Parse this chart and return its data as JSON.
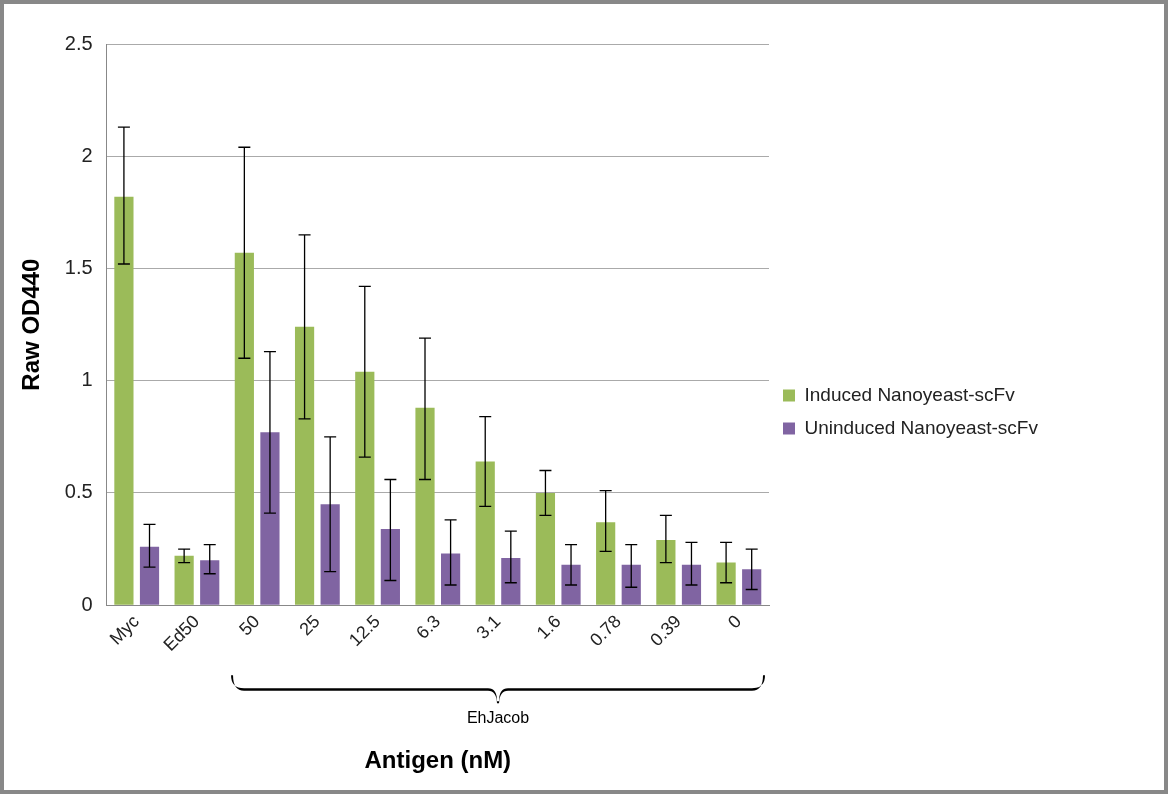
{
  "chart_data": {
    "type": "bar",
    "xlabel": "Antigen (nM)",
    "ylabel": "Raw OD440",
    "categories": [
      "Myc",
      "Ed50",
      "50",
      "25",
      "12.5",
      "6.3",
      "3.1",
      "1.6",
      "0.78",
      "0.39",
      "0"
    ],
    "series": [
      {
        "name": "Induced Nanoyeast-scFv",
        "color": "#9bbb59",
        "values": [
          1.82,
          0.22,
          1.57,
          1.24,
          1.04,
          0.88,
          0.64,
          0.5,
          0.37,
          0.29,
          0.19
        ],
        "errors": [
          [
            1.52,
            2.13
          ],
          [
            0.19,
            0.25
          ],
          [
            1.1,
            2.04
          ],
          [
            0.83,
            1.65
          ],
          [
            0.66,
            1.42
          ],
          [
            0.56,
            1.19
          ],
          [
            0.44,
            0.84
          ],
          [
            0.4,
            0.6
          ],
          [
            0.24,
            0.51
          ],
          [
            0.19,
            0.4
          ],
          [
            0.1,
            0.28
          ]
        ]
      },
      {
        "name": "Uninduced Nanoyeast-scFv",
        "color": "#8064a2",
        "values": [
          0.26,
          0.2,
          0.77,
          0.45,
          0.34,
          0.23,
          0.21,
          0.18,
          0.18,
          0.18,
          0.16
        ],
        "errors": [
          [
            0.17,
            0.36
          ],
          [
            0.14,
            0.27
          ],
          [
            0.41,
            1.13
          ],
          [
            0.15,
            0.75
          ],
          [
            0.11,
            0.56
          ],
          [
            0.09,
            0.38
          ],
          [
            0.1,
            0.33
          ],
          [
            0.09,
            0.27
          ],
          [
            0.08,
            0.27
          ],
          [
            0.09,
            0.28
          ],
          [
            0.07,
            0.25
          ]
        ]
      }
    ],
    "ylim": [
      0,
      2.5
    ],
    "yticks": [
      0,
      0.5,
      1,
      1.5,
      2,
      2.5
    ],
    "grid": "y",
    "legend": "right",
    "annotations": [
      "EhJacob"
    ]
  }
}
